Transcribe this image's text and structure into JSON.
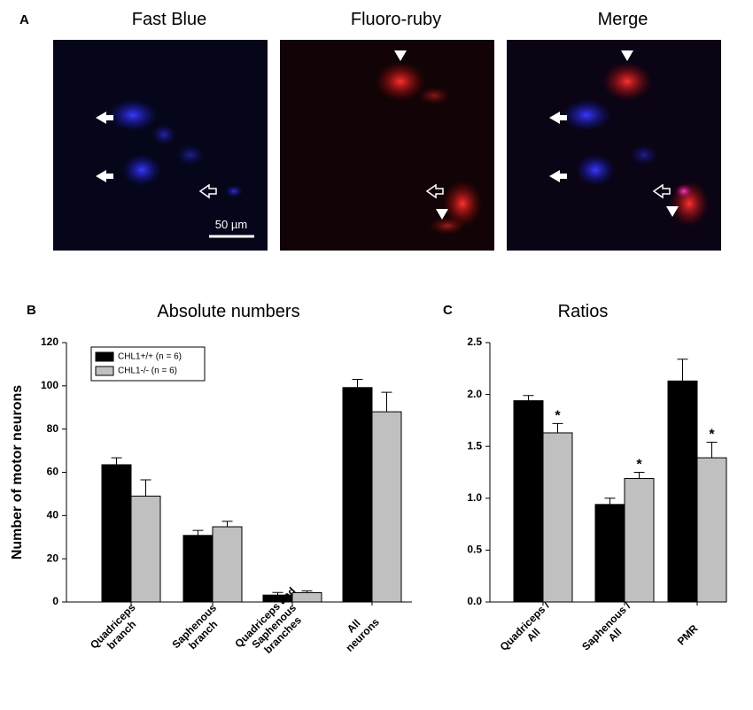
{
  "panel_a": {
    "label": "A",
    "images": [
      {
        "title": "Fast Blue"
      },
      {
        "title": "Fluoro-ruby"
      },
      {
        "title": "Merge"
      }
    ],
    "scale_bar": "50 µm"
  },
  "chart_data": [
    {
      "type": "bar",
      "label": "B",
      "title": "Absolute numbers",
      "ylabel": "Number of motor neurons",
      "categories": [
        "Quadriceps\nbranch",
        "Saphenous\nbranch",
        "Quadriceps and\nSaphenous\nbranches",
        "All\nneurons"
      ],
      "series": [
        {
          "name": "CHL1+/+ (n = 6)",
          "color": "#000000",
          "values": [
            63.5,
            30.8,
            3.2,
            99.2
          ],
          "errors": [
            3.2,
            2.3,
            1.2,
            3.8
          ]
        },
        {
          "name": "CHL1-/- (n = 6)",
          "color": "#c0c0c0",
          "values": [
            49,
            34.8,
            4.3,
            88
          ],
          "errors": [
            7.5,
            2.5,
            0.8,
            9
          ]
        }
      ],
      "ylim": [
        0,
        120
      ],
      "yticks": [
        0,
        20,
        40,
        60,
        80,
        100,
        120
      ],
      "legend": "top-left"
    },
    {
      "type": "bar",
      "label": "C",
      "title": "Ratios",
      "categories": [
        "Quadriceps /\nAll",
        "Saphenous /\nAll",
        "PMR"
      ],
      "series": [
        {
          "color": "#000000",
          "values": [
            1.94,
            0.94,
            2.13
          ],
          "errors": [
            0.05,
            0.06,
            0.21
          ]
        },
        {
          "color": "#c0c0c0",
          "values": [
            1.63,
            1.19,
            1.39
          ],
          "errors": [
            0.09,
            0.06,
            0.15
          ],
          "significance": [
            "*",
            "*",
            "*"
          ]
        }
      ],
      "ylim": [
        0,
        2.5
      ],
      "yticks": [
        {
          "value": 0,
          "label": "0.0"
        },
        0.5,
        {
          "value": 1,
          "label": "1.0"
        },
        1.5,
        {
          "value": 2,
          "label": "2.0"
        },
        2.5
      ]
    }
  ]
}
